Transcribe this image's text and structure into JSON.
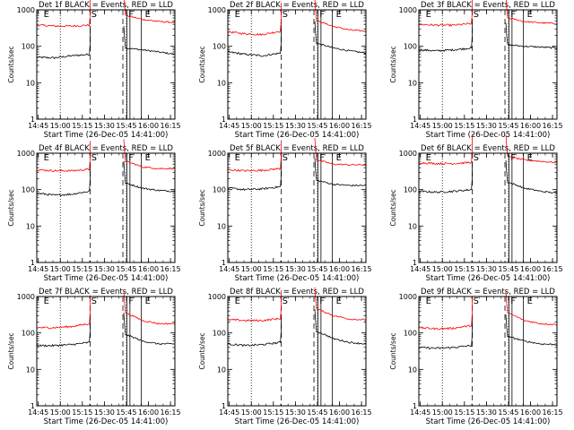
{
  "chart_data": [
    {
      "type": "line",
      "title": "Det 1f BLACK = Events, RED = LLD",
      "xlabel": "Start Time (26-Dec-05 14:41:00)",
      "ylabel": "Counts/sec",
      "yscale": "log",
      "ylim": [
        1,
        1000
      ],
      "yticks": [
        "1",
        "10",
        "100",
        "1000"
      ],
      "xlim": [
        14.733,
        16.3
      ],
      "xticks": [
        "14:45",
        "15:00",
        "15:15",
        "15:30",
        "15:45",
        "16:00",
        "16:15"
      ],
      "markers": [
        "E",
        "S",
        "F",
        "E"
      ],
      "series": [
        {
          "name": "Events",
          "color": "#000000",
          "pre": [
            50,
            48,
            55,
            60
          ],
          "post": [
            90,
            80,
            70,
            60
          ]
        },
        {
          "name": "LLD",
          "color": "#ff0000",
          "pre": [
            380,
            360,
            360,
            380
          ],
          "post": [
            700,
            550,
            480,
            450
          ]
        }
      ]
    },
    {
      "type": "line",
      "title": "Det 2f BLACK = Events, RED = LLD",
      "xlabel": "Start Time (26-Dec-05 14:41:00)",
      "ylabel": "Counts/sec",
      "yscale": "log",
      "ylim": [
        1,
        1000
      ],
      "yticks": [
        "1",
        "10",
        "100",
        "1000"
      ],
      "xlim": [
        14.733,
        16.3
      ],
      "xticks": [
        "14:45",
        "15:00",
        "15:15",
        "15:30",
        "15:45",
        "16:00",
        "16:15"
      ],
      "markers": [
        "E",
        "S",
        "F",
        "E"
      ],
      "series": [
        {
          "name": "Events",
          "color": "#000000",
          "pre": [
            70,
            60,
            55,
            65
          ],
          "post": [
            120,
            90,
            75,
            65
          ]
        },
        {
          "name": "LLD",
          "color": "#ff0000",
          "pre": [
            250,
            220,
            210,
            260
          ],
          "post": [
            500,
            350,
            280,
            260
          ]
        }
      ]
    },
    {
      "type": "line",
      "title": "Det 3f BLACK = Events, RED = LLD",
      "xlabel": "Start Time (26-Dec-05 14:41:00)",
      "ylabel": "Counts/sec",
      "yscale": "log",
      "ylim": [
        1,
        1000
      ],
      "yticks": [
        "1",
        "10",
        "100",
        "1000"
      ],
      "xlim": [
        14.733,
        16.3
      ],
      "xticks": [
        "14:45",
        "15:00",
        "15:15",
        "15:30",
        "15:45",
        "16:00",
        "16:15"
      ],
      "markers": [
        "E",
        "S",
        "F",
        "E"
      ],
      "series": [
        {
          "name": "Events",
          "color": "#000000",
          "pre": [
            80,
            75,
            80,
            90
          ],
          "post": [
            110,
            100,
            95,
            90
          ]
        },
        {
          "name": "LLD",
          "color": "#ff0000",
          "pre": [
            400,
            380,
            380,
            420
          ],
          "post": [
            600,
            480,
            440,
            420
          ]
        }
      ]
    },
    {
      "type": "line",
      "title": "Det 4f BLACK = Events, RED = LLD",
      "xlabel": "Start Time (26-Dec-05 14:41:00)",
      "ylabel": "Counts/sec",
      "yscale": "log",
      "ylim": [
        1,
        1000
      ],
      "yticks": [
        "1",
        "10",
        "100",
        "1000"
      ],
      "xlim": [
        14.733,
        16.3
      ],
      "xticks": [
        "14:45",
        "15:00",
        "15:15",
        "15:30",
        "15:45",
        "16:00",
        "16:15"
      ],
      "markers": [
        "E",
        "S",
        "F",
        "E"
      ],
      "series": [
        {
          "name": "Events",
          "color": "#000000",
          "pre": [
            80,
            70,
            75,
            90
          ],
          "post": [
            150,
            110,
            95,
            90
          ]
        },
        {
          "name": "LLD",
          "color": "#ff0000",
          "pre": [
            350,
            330,
            330,
            360
          ],
          "post": [
            600,
            420,
            380,
            380
          ]
        }
      ]
    },
    {
      "type": "line",
      "title": "Det 5f BLACK = Events, RED = LLD",
      "xlabel": "Start Time (26-Dec-05 14:41:00)",
      "ylabel": "Counts/sec",
      "yscale": "log",
      "ylim": [
        1,
        1000
      ],
      "yticks": [
        "1",
        "10",
        "100",
        "1000"
      ],
      "xlim": [
        14.733,
        16.3
      ],
      "xticks": [
        "14:45",
        "15:00",
        "15:15",
        "15:30",
        "15:45",
        "16:00",
        "16:15"
      ],
      "markers": [
        "E",
        "S",
        "F",
        "E"
      ],
      "series": [
        {
          "name": "Events",
          "color": "#000000",
          "pre": [
            110,
            100,
            105,
            120
          ],
          "post": [
            180,
            140,
            130,
            130
          ]
        },
        {
          "name": "LLD",
          "color": "#ff0000",
          "pre": [
            350,
            330,
            340,
            380
          ],
          "post": [
            650,
            500,
            480,
            480
          ]
        }
      ]
    },
    {
      "type": "line",
      "title": "Det 6f BLACK = Events, RED = LLD",
      "xlabel": "Start Time (26-Dec-05 14:41:00)",
      "ylabel": "Counts/sec",
      "yscale": "log",
      "ylim": [
        1,
        1000
      ],
      "yticks": [
        "1",
        "10",
        "100",
        "1000"
      ],
      "xlim": [
        14.733,
        16.3
      ],
      "xticks": [
        "14:45",
        "15:00",
        "15:15",
        "15:30",
        "15:45",
        "16:00",
        "16:15"
      ],
      "markers": [
        "E",
        "S",
        "F",
        "E"
      ],
      "series": [
        {
          "name": "Events",
          "color": "#000000",
          "pre": [
            90,
            85,
            90,
            100
          ],
          "post": [
            160,
            110,
            90,
            80
          ]
        },
        {
          "name": "LLD",
          "color": "#ff0000",
          "pre": [
            550,
            520,
            520,
            560
          ],
          "post": [
            800,
            650,
            600,
            550
          ]
        }
      ]
    },
    {
      "type": "line",
      "title": "Det 7f BLACK = Events, RED = LLD",
      "xlabel": "Start Time (26-Dec-05 14:41:00)",
      "ylabel": "Counts/sec",
      "yscale": "log",
      "ylim": [
        1,
        1000
      ],
      "yticks": [
        "1",
        "10",
        "100",
        "1000"
      ],
      "xlim": [
        14.733,
        16.3
      ],
      "xticks": [
        "14:45",
        "15:00",
        "15:15",
        "15:30",
        "15:45",
        "16:00",
        "16:15"
      ],
      "markers": [
        "E",
        "S",
        "F",
        "E"
      ],
      "series": [
        {
          "name": "Events",
          "color": "#000000",
          "pre": [
            45,
            45,
            48,
            55
          ],
          "post": [
            90,
            60,
            50,
            50
          ]
        },
        {
          "name": "LLD",
          "color": "#ff0000",
          "pre": [
            140,
            140,
            150,
            180
          ],
          "post": [
            350,
            220,
            180,
            180
          ]
        }
      ]
    },
    {
      "type": "line",
      "title": "Det 8f BLACK = Events, RED = LLD",
      "xlabel": "Start Time (26-Dec-05 14:41:00)",
      "ylabel": "Counts/sec",
      "yscale": "log",
      "ylim": [
        1,
        1000
      ],
      "yticks": [
        "1",
        "10",
        "100",
        "1000"
      ],
      "xlim": [
        14.733,
        16.3
      ],
      "xticks": [
        "14:45",
        "15:00",
        "15:15",
        "15:30",
        "15:45",
        "16:00",
        "16:15"
      ],
      "markers": [
        "E",
        "S",
        "F",
        "E"
      ],
      "series": [
        {
          "name": "Events",
          "color": "#000000",
          "pre": [
            50,
            45,
            48,
            55
          ],
          "post": [
            110,
            70,
            55,
            50
          ]
        },
        {
          "name": "LLD",
          "color": "#ff0000",
          "pre": [
            230,
            220,
            220,
            250
          ],
          "post": [
            450,
            300,
            240,
            230
          ]
        }
      ]
    },
    {
      "type": "line",
      "title": "Det 9f BLACK = Events, RED = LLD",
      "xlabel": "Start Time (26-Dec-05 14:41:00)",
      "ylabel": "Counts/sec",
      "yscale": "log",
      "ylim": [
        1,
        1000
      ],
      "yticks": [
        "1",
        "10",
        "100",
        "1000"
      ],
      "xlim": [
        14.733,
        16.3
      ],
      "xticks": [
        "14:45",
        "15:00",
        "15:15",
        "15:30",
        "15:45",
        "16:00",
        "16:15"
      ],
      "markers": [
        "E",
        "S",
        "F",
        "E"
      ],
      "series": [
        {
          "name": "Events",
          "color": "#000000",
          "pre": [
            40,
            38,
            40,
            45
          ],
          "post": [
            80,
            60,
            50,
            48
          ]
        },
        {
          "name": "LLD",
          "color": "#ff0000",
          "pre": [
            140,
            130,
            135,
            160
          ],
          "post": [
            350,
            220,
            180,
            170
          ]
        }
      ]
    }
  ]
}
